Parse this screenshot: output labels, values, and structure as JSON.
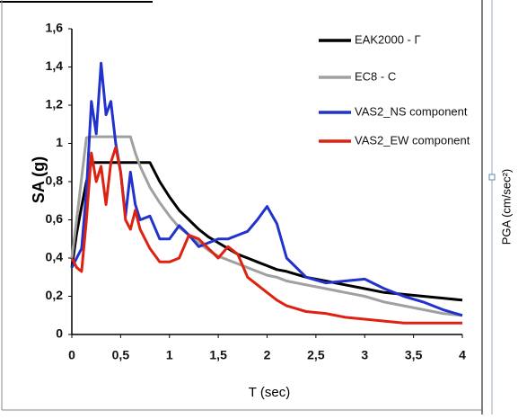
{
  "chart_data": {
    "type": "line",
    "y_label": "SA (g)",
    "x_label": "T (sec)",
    "right_label": "PGA (cm/sec²)",
    "x": [
      0,
      0.05,
      0.1,
      0.15,
      0.2,
      0.25,
      0.3,
      0.35,
      0.4,
      0.45,
      0.5,
      0.55,
      0.6,
      0.65,
      0.7,
      0.8,
      0.9,
      1.0,
      1.1,
      1.2,
      1.3,
      1.4,
      1.5,
      1.6,
      1.7,
      1.8,
      1.9,
      2.0,
      2.1,
      2.2,
      2.4,
      2.6,
      2.8,
      3.0,
      3.2,
      3.4,
      3.6,
      3.8,
      4.0
    ],
    "series": [
      {
        "name": "EAK2000 - Γ",
        "color": "#000000",
        "values": [
          0.35,
          0.53,
          0.67,
          0.8,
          0.9,
          0.9,
          0.9,
          0.9,
          0.9,
          0.9,
          0.9,
          0.9,
          0.9,
          0.9,
          0.9,
          0.9,
          0.8,
          0.72,
          0.65,
          0.6,
          0.55,
          0.51,
          0.48,
          0.45,
          0.42,
          0.4,
          0.38,
          0.36,
          0.34,
          0.33,
          0.3,
          0.28,
          0.26,
          0.24,
          0.22,
          0.21,
          0.2,
          0.19,
          0.18
        ]
      },
      {
        "name": "EC8 - C",
        "color": "#a0a0a0",
        "values": [
          0.4,
          0.6,
          0.82,
          1.03,
          1.035,
          1.035,
          1.035,
          1.035,
          1.035,
          1.035,
          1.035,
          1.035,
          1.035,
          0.95,
          0.88,
          0.77,
          0.69,
          0.62,
          0.56,
          0.52,
          0.48,
          0.44,
          0.41,
          0.39,
          0.37,
          0.35,
          0.33,
          0.31,
          0.3,
          0.28,
          0.26,
          0.24,
          0.22,
          0.2,
          0.17,
          0.15,
          0.13,
          0.11,
          0.1
        ]
      },
      {
        "name": "VAS2_NS component",
        "color": "#2233cc",
        "values": [
          0.35,
          0.4,
          0.45,
          0.75,
          1.22,
          1.05,
          1.42,
          1.15,
          1.22,
          1.0,
          0.85,
          0.62,
          0.85,
          0.68,
          0.6,
          0.62,
          0.5,
          0.5,
          0.57,
          0.52,
          0.46,
          0.48,
          0.5,
          0.5,
          0.52,
          0.54,
          0.6,
          0.67,
          0.58,
          0.4,
          0.3,
          0.27,
          0.28,
          0.29,
          0.24,
          0.2,
          0.17,
          0.13,
          0.1
        ]
      },
      {
        "name": "VAS2_EW component",
        "color": "#dd2211",
        "values": [
          0.4,
          0.35,
          0.33,
          0.6,
          0.95,
          0.8,
          0.88,
          0.68,
          0.9,
          0.98,
          0.85,
          0.6,
          0.55,
          0.65,
          0.55,
          0.45,
          0.38,
          0.38,
          0.4,
          0.52,
          0.5,
          0.45,
          0.4,
          0.46,
          0.42,
          0.3,
          0.26,
          0.22,
          0.18,
          0.15,
          0.12,
          0.11,
          0.09,
          0.08,
          0.07,
          0.06,
          0.06,
          0.06,
          0.06
        ]
      }
    ],
    "xlim": [
      0,
      4
    ],
    "xticks": [
      0,
      {
        "value": 0.5,
        "label": "0,5"
      },
      1,
      {
        "value": 1.5,
        "label": "1,5"
      },
      2,
      {
        "value": 2.5,
        "label": "2,5"
      },
      3,
      {
        "value": 3.5,
        "label": "3,5"
      },
      4
    ],
    "ylim": [
      0,
      1.6
    ],
    "yticks": [
      0,
      {
        "value": 0.2,
        "label": "0,2"
      },
      {
        "value": 0.4,
        "label": "0,4"
      },
      {
        "value": 0.6,
        "label": "0,6"
      },
      {
        "value": 0.8,
        "label": "0,8"
      },
      1,
      {
        "value": 1.2,
        "label": "1,2"
      },
      {
        "value": 1.4,
        "label": "1,4"
      },
      {
        "value": 1.6,
        "label": "1,6"
      }
    ],
    "legend": "top-right",
    "grid": false
  }
}
